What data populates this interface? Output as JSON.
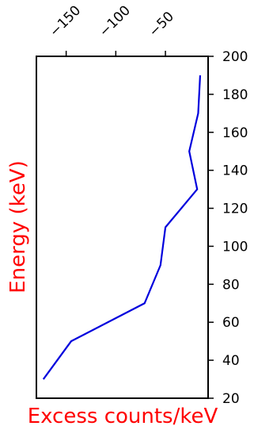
{
  "chart_data": {
    "type": "line",
    "xlabel": "Excess counts/keV",
    "ylabel": "Energy (keV)",
    "label_color": "#ff0000",
    "line_color": "#0000dd",
    "xlim": [
      -180,
      -7
    ],
    "ylim": [
      20,
      200
    ],
    "x_ticks": [
      -150,
      -100,
      -50
    ],
    "x_tick_labels": [
      "−150",
      "−100",
      "−50"
    ],
    "y_ticks": [
      20,
      40,
      60,
      80,
      100,
      120,
      140,
      160,
      180,
      200
    ],
    "y_tick_labels": [
      "20",
      "40",
      "60",
      "80",
      "100",
      "120",
      "140",
      "160",
      "180",
      "200"
    ],
    "grid": false,
    "series": [
      {
        "x": [
          -173,
          -145,
          -71,
          -55,
          -50,
          -18,
          -26,
          -17,
          -15
        ],
        "y": [
          30,
          50,
          70,
          90,
          110,
          130,
          150,
          170,
          190
        ]
      }
    ]
  }
}
